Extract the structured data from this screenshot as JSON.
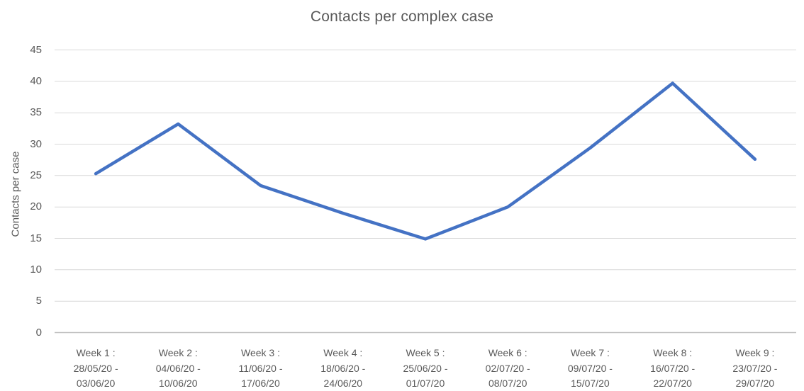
{
  "chart_data": {
    "type": "line",
    "title": "Contacts per complex case",
    "xlabel": "",
    "ylabel": "Contacts per case",
    "ylim": [
      0,
      45
    ],
    "yticks": [
      0,
      5,
      10,
      15,
      20,
      25,
      30,
      35,
      40,
      45
    ],
    "grid": true,
    "legend_position": "none",
    "categories": [
      [
        "Week 1 :",
        "28/05/20 -",
        "03/06/20"
      ],
      [
        "Week 2 :",
        "04/06/20 -",
        "10/06/20"
      ],
      [
        "Week 3 :",
        "11/06/20 -",
        "17/06/20"
      ],
      [
        "Week 4 :",
        "18/06/20 -",
        "24/06/20"
      ],
      [
        "Week 5 :",
        "25/06/20 -",
        "01/07/20"
      ],
      [
        "Week 6 :",
        "02/07/20 -",
        "08/07/20"
      ],
      [
        "Week 7 :",
        "09/07/20 -",
        "15/07/20"
      ],
      [
        "Week 8 :",
        "16/07/20 -",
        "22/07/20"
      ],
      [
        "Week 9 :",
        "23/07/20 -",
        "29/07/20"
      ]
    ],
    "series": [
      {
        "name": "Contacts per case",
        "values": [
          25.3,
          33.2,
          23.4,
          19.0,
          14.9,
          20.0,
          29.4,
          39.7,
          27.6
        ]
      }
    ],
    "colors": {
      "line": "#4472C4",
      "gridline": "#D9D9D9",
      "axis_line": "#BFBFBF",
      "text": "#595959"
    }
  }
}
